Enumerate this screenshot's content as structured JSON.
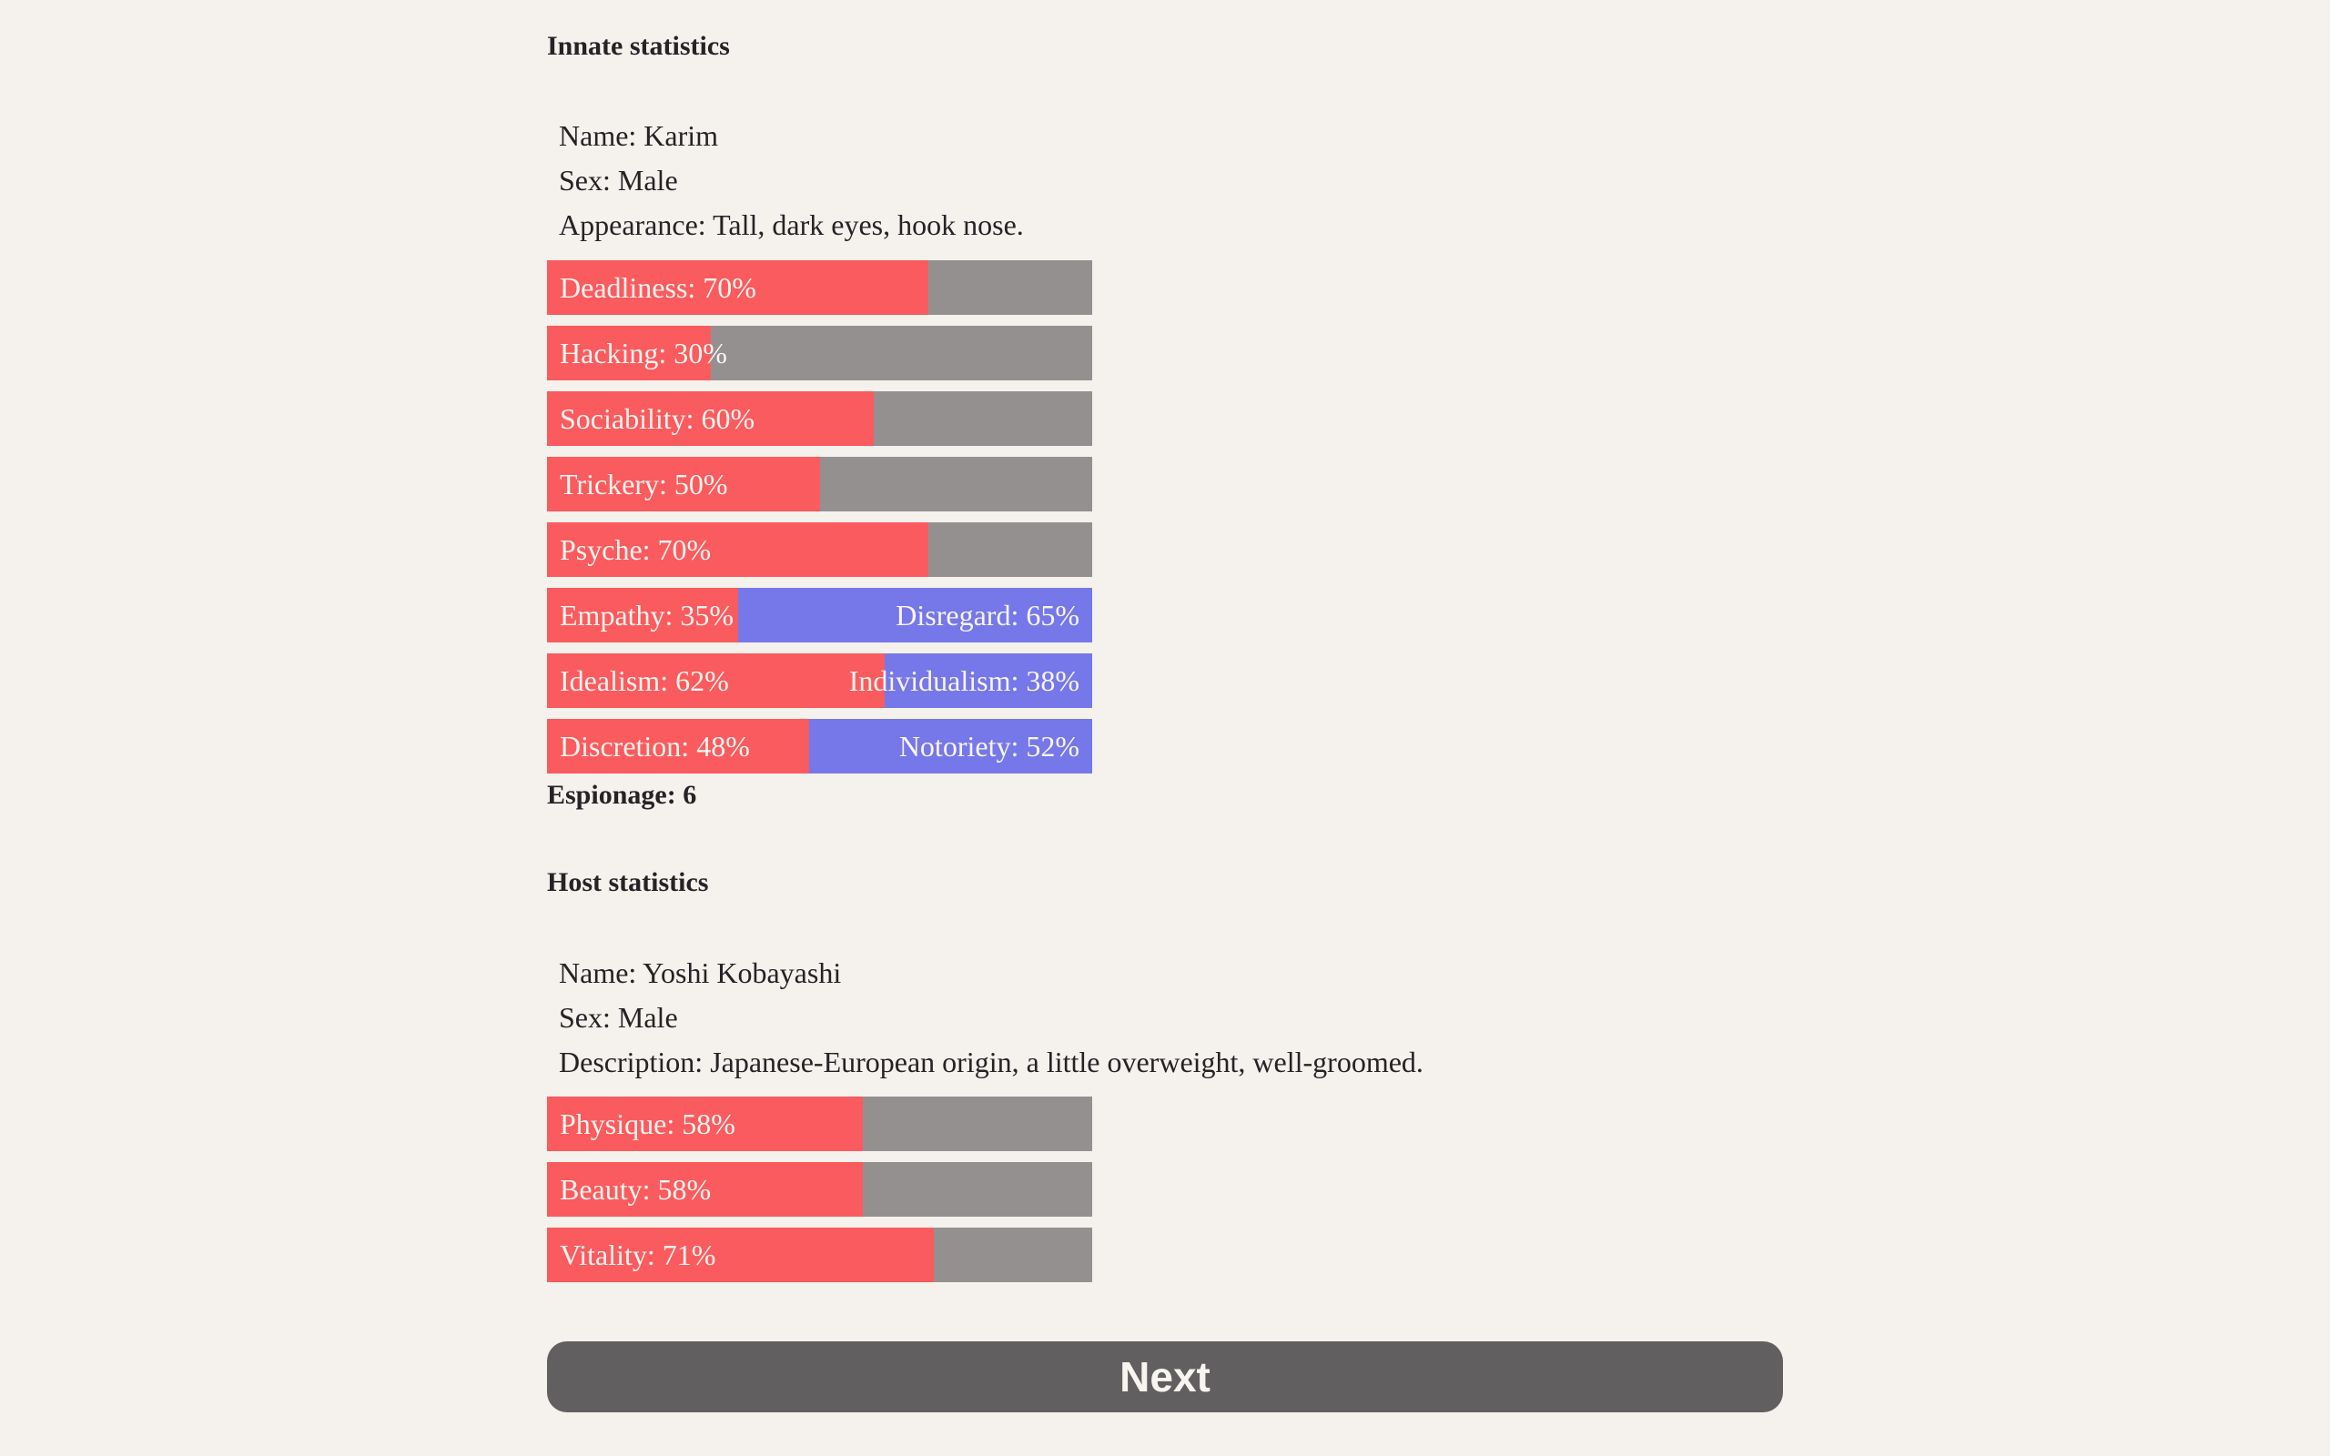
{
  "colors": {
    "page_bg": "#f5f1ec",
    "bar_red": "#fa5b5e",
    "bar_gray": "#949090",
    "bar_blue": "#7678e9",
    "bar_text": "#f8f4ef",
    "body_text": "#262226",
    "button_bg": "#615f5f",
    "button_text": "#f8f4ef"
  },
  "innate": {
    "heading": "Innate statistics",
    "info_lines": [
      "Name: Karim",
      "Sex: Male",
      "Appearance: Tall, dark eyes, hook nose."
    ],
    "bars": [
      {
        "text": "Deadliness: 70%",
        "value": 70
      },
      {
        "text": "Hacking: 30%",
        "value": 30
      },
      {
        "text": "Sociability: 60%",
        "value": 60
      },
      {
        "text": "Trickery: 50%",
        "value": 50
      },
      {
        "text": "Psyche: 70%",
        "value": 70
      }
    ],
    "opposed_bars": [
      {
        "left_text": "Empathy: 35%",
        "left_value": 35,
        "right_text": "Disregard: 65%",
        "right_value": 65
      },
      {
        "left_text": "Idealism: 62%",
        "left_value": 62,
        "right_text": "Individualism: 38%",
        "right_value": 38
      },
      {
        "left_text": "Discretion: 48%",
        "left_value": 48,
        "right_text": "Notoriety: 52%",
        "right_value": 52
      }
    ],
    "espionage_text": "Espionage: 6"
  },
  "host": {
    "heading": "Host statistics",
    "info_lines": [
      "Name: Yoshi Kobayashi",
      "Sex: Male",
      "Description: Japanese-European origin, a little overweight, well-groomed."
    ],
    "bars": [
      {
        "text": "Physique: 58%",
        "value": 58
      },
      {
        "text": "Beauty: 58%",
        "value": 58
      },
      {
        "text": "Vitality: 71%",
        "value": 71
      }
    ]
  },
  "next_button": {
    "label": "Next"
  }
}
